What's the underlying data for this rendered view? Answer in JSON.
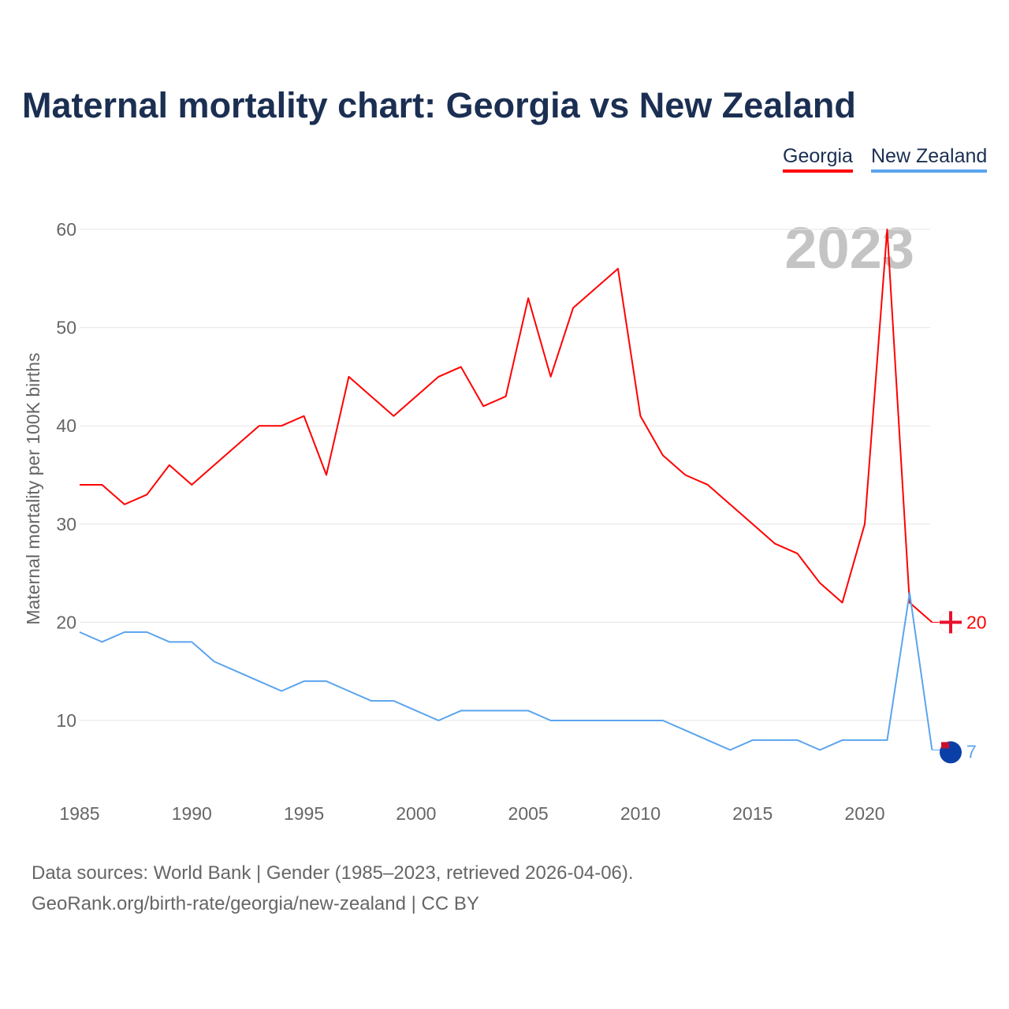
{
  "chart_data": {
    "type": "line",
    "title": "Maternal mortality chart: Georgia vs New Zealand",
    "ylabel": "Maternal mortality per 100K births",
    "xlabel": "",
    "year_watermark": "2023",
    "x": [
      1985,
      1986,
      1987,
      1988,
      1989,
      1990,
      1991,
      1992,
      1993,
      1994,
      1995,
      1996,
      1997,
      1998,
      1999,
      2000,
      2001,
      2002,
      2003,
      2004,
      2005,
      2006,
      2007,
      2008,
      2009,
      2010,
      2011,
      2012,
      2013,
      2014,
      2015,
      2016,
      2017,
      2018,
      2019,
      2020,
      2021,
      2022,
      2023
    ],
    "series": [
      {
        "name": "Georgia",
        "color": "#ff0000",
        "end_label": "20",
        "values": [
          34,
          34,
          32,
          33,
          36,
          34,
          36,
          38,
          40,
          40,
          41,
          35,
          45,
          43,
          41,
          43,
          45,
          46,
          42,
          43,
          53,
          45,
          52,
          54,
          56,
          41,
          37,
          35,
          34,
          32,
          30,
          28,
          27,
          24,
          22,
          30,
          60,
          22,
          20
        ]
      },
      {
        "name": "New Zealand",
        "color": "#5ba4ee",
        "end_label": "7",
        "values": [
          19,
          18,
          19,
          19,
          18,
          18,
          16,
          15,
          14,
          13,
          14,
          14,
          13,
          12,
          12,
          11,
          10,
          11,
          11,
          11,
          11,
          10,
          10,
          10,
          10,
          10,
          10,
          9,
          8,
          7,
          8,
          8,
          8,
          7,
          8,
          8,
          8,
          23,
          7
        ]
      }
    ],
    "xticks": [
      "1985",
      "1990",
      "1995",
      "2000",
      "2005",
      "2010",
      "2015",
      "2020"
    ],
    "yticks": [
      "10",
      "20",
      "30",
      "40",
      "50",
      "60"
    ],
    "xlim": [
      1985,
      2023
    ],
    "ylim": [
      4,
      60
    ],
    "grid": true,
    "legend_position": "top-right"
  },
  "footer": {
    "line1": "Data sources: World Bank | Gender (1985–2023, retrieved 2026-04-06).",
    "line2": "GeoRank.org/birth-rate/georgia/new-zealand | CC BY"
  }
}
